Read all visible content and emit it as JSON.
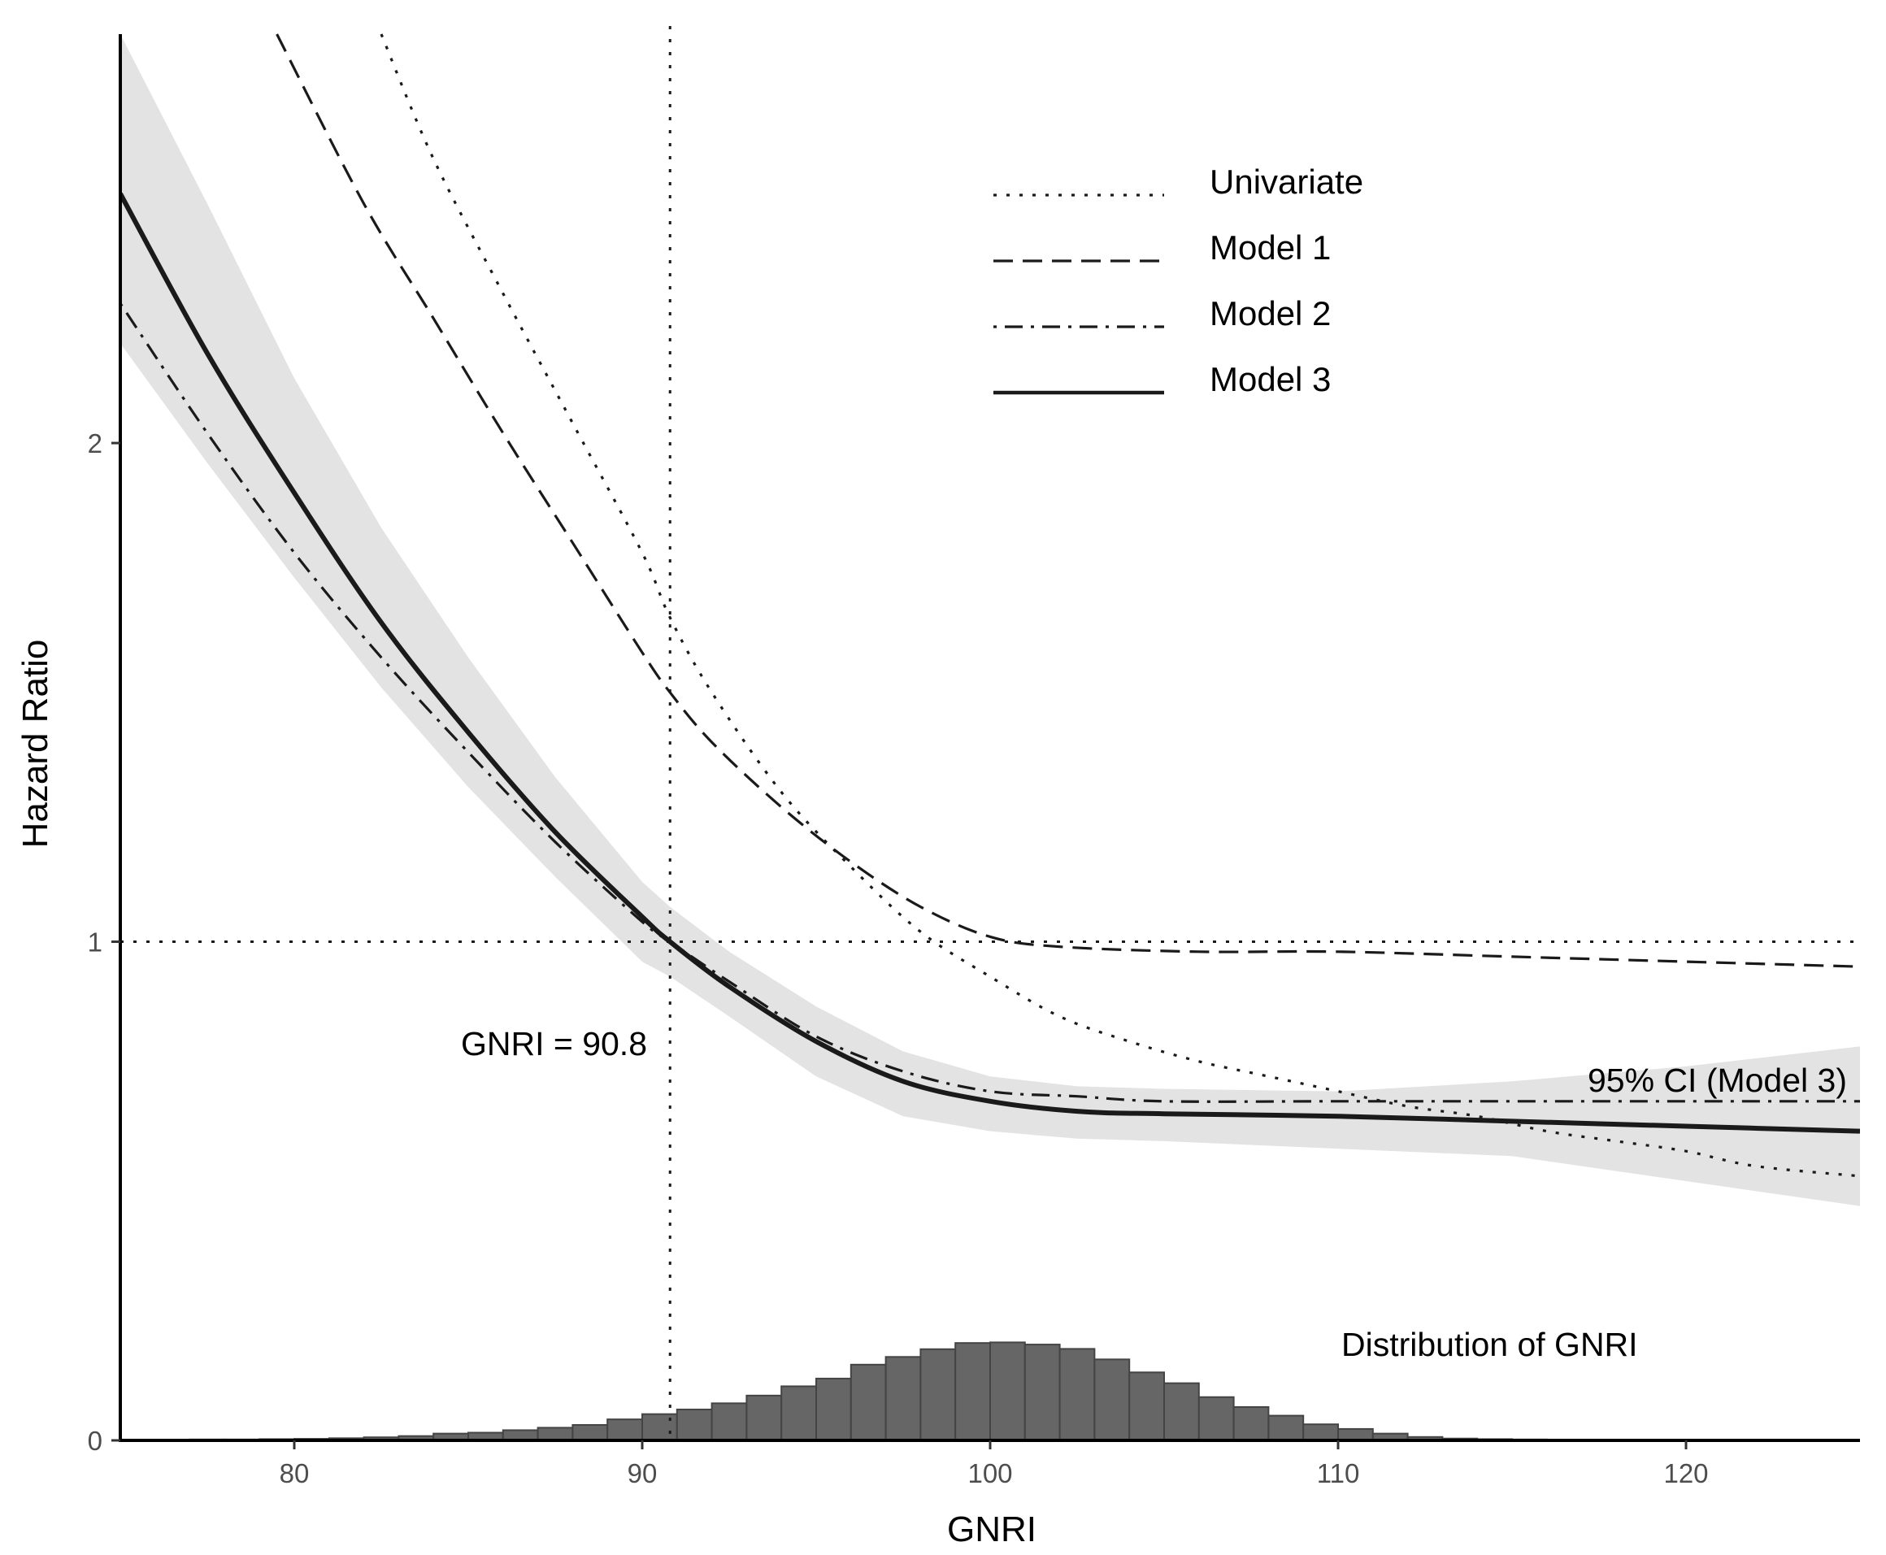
{
  "chart_data": {
    "type": "line",
    "xlabel": "GNRI",
    "ylabel": "Hazard Ratio",
    "xlim": [
      75,
      125
    ],
    "ylim": [
      0,
      2.82
    ],
    "x_ticks": [
      80,
      90,
      100,
      110,
      120
    ],
    "y_ticks": [
      0,
      1,
      2
    ],
    "reference_lines": {
      "x": 90.8,
      "y": 1
    },
    "series": [
      {
        "name": "Univariate",
        "style": "dotted",
        "x": [
          82.5,
          84,
          86,
          88,
          90,
          90.8,
          92,
          94,
          96,
          98,
          100,
          102,
          104,
          106,
          108,
          110,
          112,
          114,
          116,
          118,
          120,
          122,
          125
        ],
        "y": [
          2.82,
          2.57,
          2.3,
          2.04,
          1.78,
          1.65,
          1.5,
          1.3,
          1.15,
          1.02,
          0.93,
          0.85,
          0.8,
          0.76,
          0.73,
          0.7,
          0.67,
          0.65,
          0.62,
          0.6,
          0.58,
          0.55,
          0.53
        ]
      },
      {
        "name": "Model 1",
        "style": "dashed",
        "x": [
          79.5,
          82,
          84,
          86,
          88,
          90,
          90.8,
          92,
          94,
          96,
          98,
          100,
          102,
          106,
          110,
          115,
          120,
          125
        ],
        "y": [
          2.82,
          2.48,
          2.25,
          2.02,
          1.8,
          1.58,
          1.5,
          1.4,
          1.27,
          1.16,
          1.07,
          1.01,
          0.99,
          0.98,
          0.98,
          0.97,
          0.96,
          0.95
        ]
      },
      {
        "name": "Model 2",
        "style": "dotdash",
        "x": [
          75,
          77.5,
          80,
          82.5,
          85,
          87.5,
          90,
          90.8,
          92.5,
          95,
          97.5,
          100,
          102.5,
          105,
          110,
          115,
          120,
          125
        ],
        "y": [
          2.28,
          2.02,
          1.78,
          1.57,
          1.38,
          1.2,
          1.04,
          1.0,
          0.92,
          0.81,
          0.74,
          0.7,
          0.69,
          0.68,
          0.68,
          0.68,
          0.68,
          0.68
        ]
      },
      {
        "name": "Model 3",
        "style": "solid",
        "x": [
          75,
          77.5,
          80,
          82.5,
          85,
          87.5,
          90,
          90.8,
          92.5,
          95,
          97.5,
          100,
          102.5,
          105,
          110,
          115,
          120,
          125
        ],
        "y": [
          2.5,
          2.18,
          1.9,
          1.64,
          1.42,
          1.22,
          1.05,
          1.0,
          0.91,
          0.8,
          0.72,
          0.68,
          0.66,
          0.655,
          0.65,
          0.64,
          0.63,
          0.62
        ],
        "ci_lower": [
          2.2,
          1.96,
          1.73,
          1.51,
          1.31,
          1.13,
          0.96,
          0.93,
          0.85,
          0.73,
          0.65,
          0.62,
          0.605,
          0.6,
          0.585,
          0.57,
          0.52,
          0.47
        ],
        "ci_upper": [
          2.82,
          2.48,
          2.13,
          1.83,
          1.57,
          1.33,
          1.12,
          1.07,
          0.98,
          0.87,
          0.78,
          0.73,
          0.71,
          0.705,
          0.7,
          0.72,
          0.75,
          0.79
        ]
      }
    ],
    "histogram": {
      "name": "Distribution of GNRI",
      "bin_width": 1,
      "bins": [
        {
          "x0": 75,
          "density": 0.002
        },
        {
          "x0": 76,
          "density": 0.002
        },
        {
          "x0": 77,
          "density": 0.003
        },
        {
          "x0": 78,
          "density": 0.003
        },
        {
          "x0": 79,
          "density": 0.004
        },
        {
          "x0": 80,
          "density": 0.005
        },
        {
          "x0": 81,
          "density": 0.007
        },
        {
          "x0": 82,
          "density": 0.01
        },
        {
          "x0": 83,
          "density": 0.014
        },
        {
          "x0": 84,
          "density": 0.022
        },
        {
          "x0": 85,
          "density": 0.025
        },
        {
          "x0": 86,
          "density": 0.033
        },
        {
          "x0": 87,
          "density": 0.041
        },
        {
          "x0": 88,
          "density": 0.05
        },
        {
          "x0": 89,
          "density": 0.068
        },
        {
          "x0": 90,
          "density": 0.085
        },
        {
          "x0": 91,
          "density": 0.1
        },
        {
          "x0": 92,
          "density": 0.12
        },
        {
          "x0": 93,
          "density": 0.145
        },
        {
          "x0": 94,
          "density": 0.175
        },
        {
          "x0": 95,
          "density": 0.2
        },
        {
          "x0": 96,
          "density": 0.245
        },
        {
          "x0": 97,
          "density": 0.27
        },
        {
          "x0": 98,
          "density": 0.295
        },
        {
          "x0": 99,
          "density": 0.315
        },
        {
          "x0": 100,
          "density": 0.317
        },
        {
          "x0": 101,
          "density": 0.31
        },
        {
          "x0": 102,
          "density": 0.296
        },
        {
          "x0": 103,
          "density": 0.262
        },
        {
          "x0": 104,
          "density": 0.22
        },
        {
          "x0": 105,
          "density": 0.185
        },
        {
          "x0": 106,
          "density": 0.14
        },
        {
          "x0": 107,
          "density": 0.108
        },
        {
          "x0": 108,
          "density": 0.08
        },
        {
          "x0": 109,
          "density": 0.052
        },
        {
          "x0": 110,
          "density": 0.037
        },
        {
          "x0": 111,
          "density": 0.022
        },
        {
          "x0": 112,
          "density": 0.011
        },
        {
          "x0": 113,
          "density": 0.006
        },
        {
          "x0": 114,
          "density": 0.004
        },
        {
          "x0": 115,
          "density": 0.003
        },
        {
          "x0": 116,
          "density": 0.002
        },
        {
          "x0": 117,
          "density": 0.001
        },
        {
          "x0": 118,
          "density": 0.001
        }
      ]
    },
    "annotations": {
      "cutoff_label": "GNRI = 90.8",
      "ci_label": "95% CI (Model 3)",
      "histogram_label": "Distribution of GNRI"
    },
    "legend": {
      "position": "top-center",
      "entries": [
        "Univariate",
        "Model 1",
        "Model 2",
        "Model 3"
      ]
    },
    "colors": {
      "line": "#1a1a1a",
      "ci_band": "#e3e3e3",
      "histogram_fill": "#666666",
      "histogram_stroke": "#444444"
    }
  }
}
